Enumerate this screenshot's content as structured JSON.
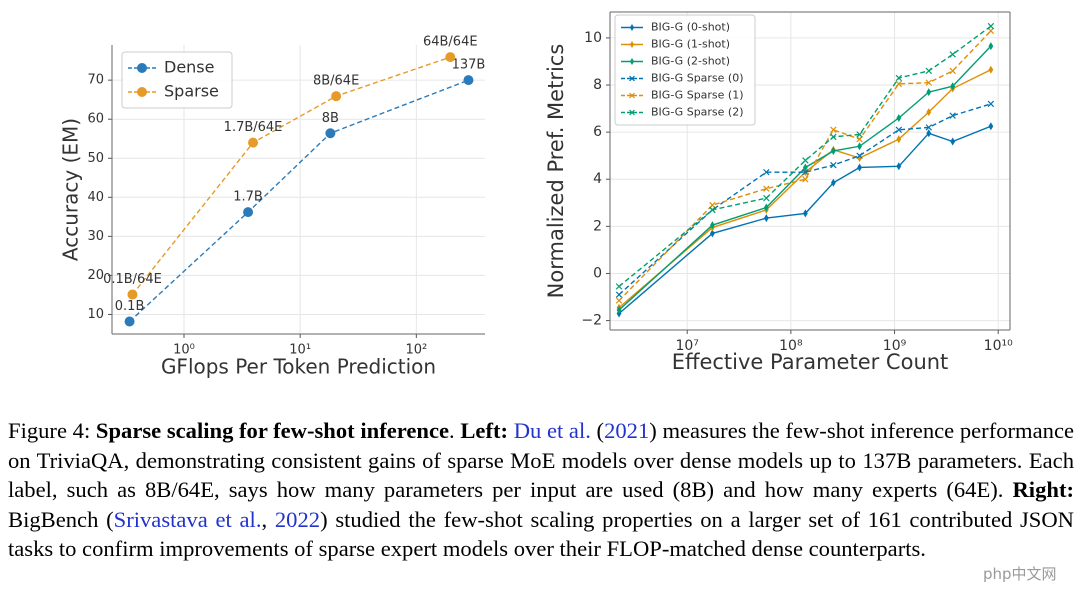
{
  "chart_data": [
    {
      "type": "line",
      "xlabel": "GFlops Per Token Prediction",
      "ylabel": "Accuracy (EM)",
      "xscale": "log",
      "xlim": [
        0.24,
        390
      ],
      "ylim": [
        5,
        79
      ],
      "xticks": [
        {
          "value": 1,
          "label": "10⁰"
        },
        {
          "value": 10,
          "label": "10¹"
        },
        {
          "value": 100,
          "label": "10²"
        }
      ],
      "yticks": [
        10,
        20,
        30,
        40,
        50,
        60,
        70
      ],
      "grid": true,
      "legend": "upper left",
      "frame": "open",
      "series": [
        {
          "name": "Dense",
          "color": "#2b7bba",
          "marker": "o",
          "linestyle": "dashed",
          "x": [
            0.34,
            3.56,
            18.2,
            281
          ],
          "values": [
            8.2,
            36.2,
            56.4,
            70
          ],
          "labels": [
            "0.1B",
            "1.7B",
            "8B",
            "137B"
          ]
        },
        {
          "name": "Sparse",
          "color": "#e69a28",
          "marker": "o",
          "linestyle": "dashed",
          "x": [
            0.36,
            3.93,
            20.4,
            196
          ],
          "values": [
            15.1,
            54,
            65.9,
            75.9
          ],
          "labels": [
            "0.1B/64E",
            "1.7B/64E",
            "8B/64E",
            "64B/64E"
          ]
        }
      ]
    },
    {
      "type": "line",
      "xlabel": "Effective Parameter Count",
      "ylabel": "Normalized Pref. Metrics",
      "xscale": "log",
      "xlim": [
        1800000,
        13000000000
      ],
      "ylim": [
        -2.4,
        11.1
      ],
      "xticks": [
        {
          "value": 10000000,
          "label": "10⁷"
        },
        {
          "value": 100000000,
          "label": "10⁸"
        },
        {
          "value": 1000000000,
          "label": "10⁹"
        },
        {
          "value": 10000000000,
          "label": "10¹⁰"
        }
      ],
      "yticks": [
        {
          "value": -2,
          "label": "−2"
        },
        0,
        2,
        4,
        6,
        8,
        10
      ],
      "grid": true,
      "legend": "upper left",
      "frame": "box",
      "x": [
        2200000,
        17500000,
        58000000,
        138000000,
        257000000,
        460000000,
        1100000000,
        2140000000,
        3640000000,
        8500000000
      ],
      "series": [
        {
          "name": "BIG-G (0-shot)",
          "color": "#0173b2",
          "marker": "d",
          "linestyle": "solid",
          "values": [
            -1.7,
            1.7,
            2.35,
            2.55,
            3.85,
            4.5,
            4.55,
            5.95,
            5.6,
            6.25
          ]
        },
        {
          "name": "BIG-G (1-shot)",
          "color": "#de8f05",
          "marker": "d",
          "linestyle": "solid",
          "values": [
            -1.45,
            1.95,
            2.7,
            4.3,
            5.25,
            4.9,
            5.7,
            6.85,
            7.85,
            8.65
          ]
        },
        {
          "name": "BIG-G (2-shot)",
          "color": "#029e73",
          "marker": "d",
          "linestyle": "solid",
          "values": [
            -1.55,
            2.05,
            2.8,
            4.5,
            5.2,
            5.4,
            6.6,
            7.7,
            7.95,
            9.65
          ]
        },
        {
          "name": "BIG-G Sparse (0)",
          "color": "#0173b2",
          "marker": "x",
          "linestyle": "dashed",
          "values": [
            -0.9,
            2.7,
            4.3,
            4.3,
            4.6,
            5.0,
            6.1,
            6.2,
            6.7,
            7.2
          ]
        },
        {
          "name": "BIG-G Sparse (1)",
          "color": "#de8f05",
          "marker": "x",
          "linestyle": "dashed",
          "values": [
            -1.15,
            2.9,
            3.6,
            4.0,
            6.1,
            5.7,
            8.05,
            8.1,
            8.6,
            10.3
          ]
        },
        {
          "name": "BIG-G Sparse (2)",
          "color": "#029e73",
          "marker": "x",
          "linestyle": "dashed",
          "values": [
            -0.55,
            2.7,
            3.2,
            4.8,
            5.8,
            5.9,
            8.3,
            8.6,
            9.3,
            10.5
          ]
        }
      ]
    }
  ],
  "caption": [
    {
      "text": "Figure 4: "
    },
    {
      "text": "Sparse scaling for few-shot inference",
      "bold": true
    },
    {
      "text": ". "
    },
    {
      "text": "Left: ",
      "bold": true
    },
    {
      "text": "Du et al.",
      "link": true
    },
    {
      "text": " ("
    },
    {
      "text": "2021",
      "link": true
    },
    {
      "text": ") measures the few-shot inference performance on TriviaQA, demonstrating consistent gains of sparse MoE models over dense models up to 137B parameters. Each label, such as 8B/64E, says how many parameters per input are used (8B) and how many experts (64E). "
    },
    {
      "text": "Right: ",
      "bold": true
    },
    {
      "text": "BigBench ("
    },
    {
      "text": "Srivastava et al.",
      "link": true
    },
    {
      "text": ", "
    },
    {
      "text": "2022",
      "link": true
    },
    {
      "text": ") studied the few-shot scaling properties on a larger set of 161 contributed JSON tasks to confirm improvements of sparse expert models over their FLOP-matched dense counterparts."
    }
  ],
  "watermark": "php中文网"
}
